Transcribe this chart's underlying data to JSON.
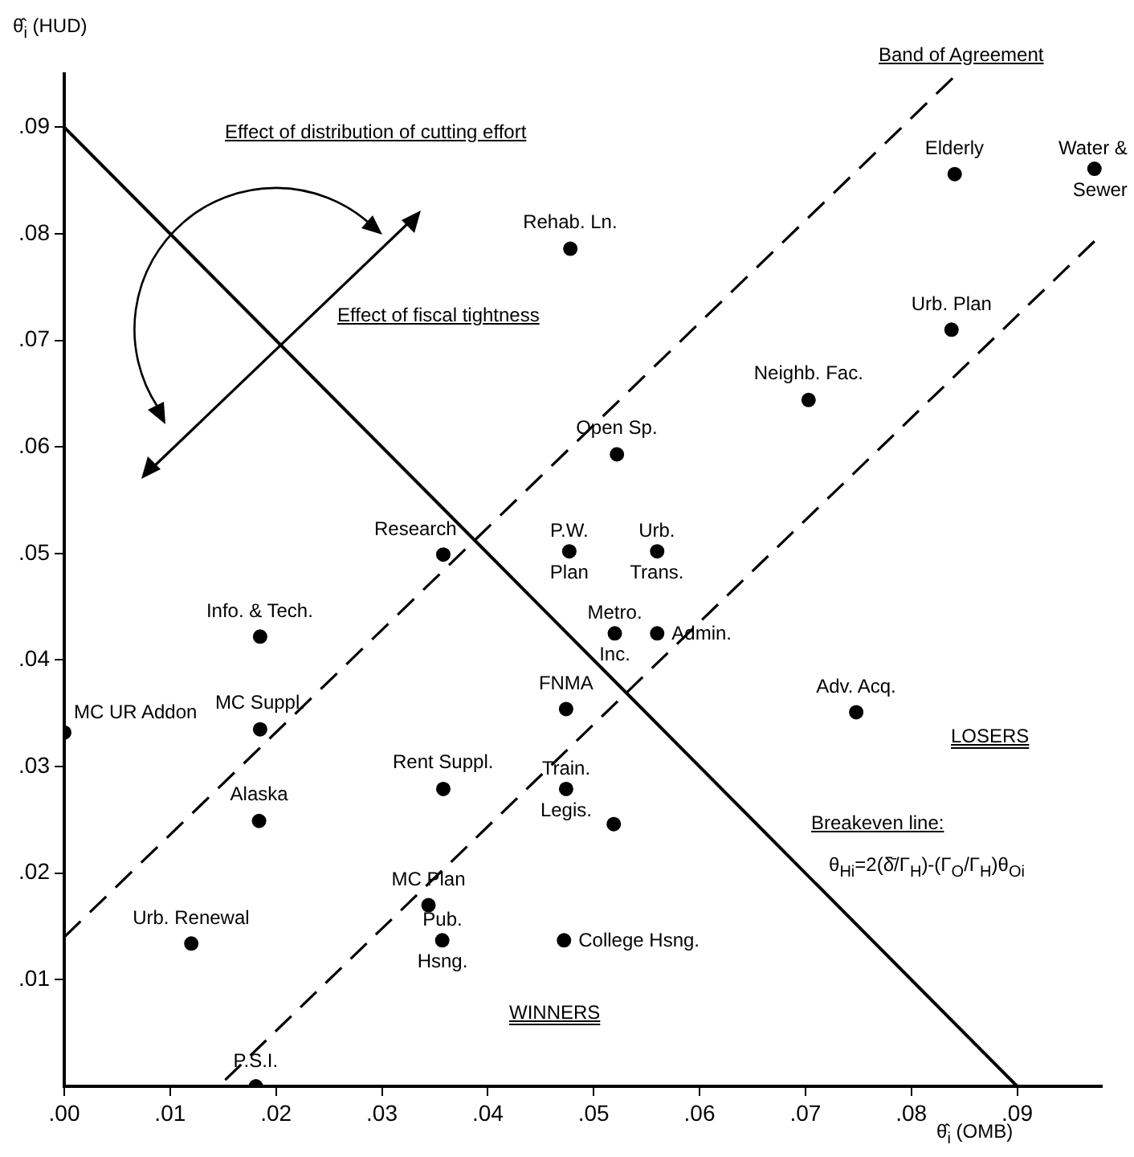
{
  "chart_data": {
    "type": "scatter",
    "xlabel": "θ̂$_{i}$ (OMB)",
    "ylabel": "θ̂$_{i}$ (HUD)",
    "xlim": [
      0,
      0.098
    ],
    "ylim": [
      0,
      0.095
    ],
    "xticks": [
      {
        "value": 0,
        "label": ".00"
      },
      {
        "value": 0.01,
        "label": ".01"
      },
      {
        "value": 0.02,
        "label": ".02"
      },
      {
        "value": 0.03,
        "label": ".03"
      },
      {
        "value": 0.04,
        "label": ".04"
      },
      {
        "value": 0.05,
        "label": ".05"
      },
      {
        "value": 0.06,
        "label": ".06"
      },
      {
        "value": 0.07,
        "label": ".07"
      },
      {
        "value": 0.08,
        "label": ".08"
      },
      {
        "value": 0.09,
        "label": ".09"
      }
    ],
    "yticks": [
      {
        "value": 0.01,
        "label": ".01"
      },
      {
        "value": 0.02,
        "label": ".02"
      },
      {
        "value": 0.03,
        "label": ".03"
      },
      {
        "value": 0.04,
        "label": ".04"
      },
      {
        "value": 0.05,
        "label": ".05"
      },
      {
        "value": 0.06,
        "label": ".06"
      },
      {
        "value": 0.07,
        "label": ".07"
      },
      {
        "value": 0.08,
        "label": ".08"
      },
      {
        "value": 0.09,
        "label": ".09"
      }
    ],
    "grid": false,
    "legend": false,
    "series": [
      {
        "type": "scatter",
        "color": "#000000",
        "marker": "circle",
        "x": [
          0.0478,
          0.0841,
          0.0973,
          0.0838,
          0.0703,
          0.0522,
          0.0358,
          0.0477,
          0.056,
          0.052,
          0.056,
          0.0474,
          0.0748,
          0.0474,
          0.0519,
          0.0185,
          0.0185,
          0,
          0.0184,
          0.0358,
          0.0344,
          0.0357,
          0.0472,
          0.012,
          0.0181
        ],
        "values": [
          0.0786,
          0.0856,
          0.0861,
          0.071,
          0.0644,
          0.0593,
          0.0499,
          0.0502,
          0.0502,
          0.0425,
          0.0425,
          0.0354,
          0.0351,
          0.0279,
          0.0246,
          0.0422,
          0.0335,
          0.0332,
          0.0249,
          0.0279,
          0.017,
          0.0137,
          0.0137,
          0.0134,
          0
        ]
      },
      {
        "type": "line",
        "color": "#000000",
        "line_style": "solid",
        "x": [
          0,
          0.09
        ],
        "values": [
          0.09,
          0
        ]
      },
      {
        "type": "line",
        "color": "#000000",
        "line_style": "dashed",
        "x": [
          0,
          0.0839
        ],
        "values": [
          0.014,
          0.0946
        ]
      },
      {
        "type": "line",
        "color": "#000000",
        "line_style": "dashed",
        "x": [
          0.0152,
          0.0973
        ],
        "values": [
          0.0006,
          0.0793
        ]
      }
    ],
    "annotations": [
      "Effect of distribution of cutting effort",
      "Effect of fiscal tightness",
      "Band of Agreement",
      "LOSERS",
      "WINNERS",
      "Breakeven line:",
      "θ$_{Hi}$=2(δ̄/Γ$_{H}$)-(Γ$_{O}$/Γ$_{H}$)θ$_{Oi}$",
      {
        "text": "Rehab. Ln.",
        "x": 0.0478,
        "y": 0.0786
      },
      {
        "text": "Elderly",
        "x": 0.0841,
        "y": 0.0856
      },
      {
        "text": "Water & Sewer",
        "x": 0.0973,
        "y": 0.0861
      },
      {
        "text": "Urb. Plan",
        "x": 0.0838,
        "y": 0.071
      },
      {
        "text": "Neighb. Fac.",
        "x": 0.0703,
        "y": 0.0644
      },
      {
        "text": "Open Sp.",
        "x": 0.0522,
        "y": 0.0593
      },
      {
        "text": "Research",
        "x": 0.0358,
        "y": 0.0499
      },
      {
        "text": "P.W. Plan",
        "x": 0.0477,
        "y": 0.0502
      },
      {
        "text": "Urb. Trans.",
        "x": 0.056,
        "y": 0.0502
      },
      {
        "text": "Metro. Inc.",
        "x": 0.052,
        "y": 0.0425
      },
      {
        "text": "Admin.",
        "x": 0.056,
        "y": 0.0425
      },
      {
        "text": "FNMA",
        "x": 0.0474,
        "y": 0.0354
      },
      {
        "text": "Adv. Acq.",
        "x": 0.0748,
        "y": 0.0351
      },
      {
        "text": "Train. Legis.",
        "x": 0.0474,
        "y": 0.0279
      },
      {
        "text": "Info. & Tech.",
        "x": 0.0185,
        "y": 0.0422
      },
      {
        "text": "MC Suppl.",
        "x": 0.0185,
        "y": 0.0335
      },
      {
        "text": "MC UR Addon",
        "x": 0,
        "y": 0.0332
      },
      {
        "text": "Alaska",
        "x": 0.0184,
        "y": 0.0249
      },
      {
        "text": "Rent Suppl.",
        "x": 0.0358,
        "y": 0.0279
      },
      {
        "text": "MC Plan",
        "x": 0.0344,
        "y": 0.017
      },
      {
        "text": "Pub. Hsng.",
        "x": 0.0357,
        "y": 0.0137
      },
      {
        "text": "College Hsng.",
        "x": 0.0472,
        "y": 0.0137
      },
      {
        "text": "Urb. Renewal",
        "x": 0.012,
        "y": 0.0134
      },
      {
        "text": "P.S.I.",
        "x": 0.0181,
        "y": 0
      }
    ]
  }
}
